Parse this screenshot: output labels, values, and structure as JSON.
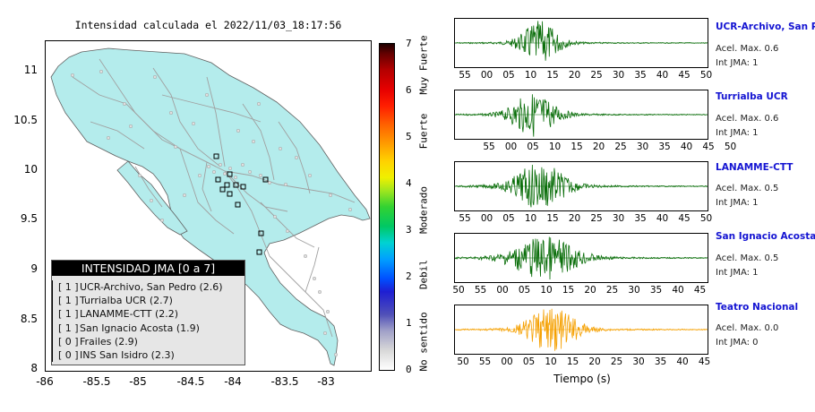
{
  "map": {
    "title": "Intensidad calculada el 2022/11/03_18:17:56",
    "lat_ticks": [
      "11",
      "10.5",
      "10",
      "9.5",
      "9",
      "8.5",
      "8"
    ],
    "lon_ticks": [
      "-86",
      "-85.5",
      "-85",
      "-84.5",
      "-84",
      "-83.5",
      "-83"
    ],
    "land_color": "#b4ecec",
    "road_color": "#a0a0a0"
  },
  "legend": {
    "title": "INTENSIDAD JMA [0 a 7]",
    "items": [
      {
        "level": "[ 1 ]",
        "text": "UCR-Archivo, San Pedro (2.6)"
      },
      {
        "level": "[ 1 ]",
        "text": "Turrialba UCR (2.7)"
      },
      {
        "level": "[ 1 ]",
        "text": "LANAMME-CTT (2.2)"
      },
      {
        "level": "[ 1 ]",
        "text": "San Ignacio Acosta (1.9)"
      },
      {
        "level": "[ 0 ]",
        "text": "Frailes (2.9)"
      },
      {
        "level": "[ 0 ]",
        "text": "INS San Isidro (2.3)"
      }
    ]
  },
  "colorbar": {
    "ticks": [
      "7",
      "6",
      "5",
      "4",
      "3",
      "2",
      "1",
      "0"
    ],
    "categories": [
      "Muy Fuerte",
      "Fuerte",
      "Moderado",
      "Debil",
      "No sentido"
    ]
  },
  "stations": [
    {
      "name": "UCR-Archivo, San Pedro",
      "accel": "Acel. Max. 0.6",
      "jma": "Int JMA: 1",
      "color": "#0a6e0a",
      "ticks": [
        "55",
        "00",
        "05",
        "10",
        "15",
        "20",
        "25",
        "30",
        "35",
        "40",
        "45",
        "50"
      ]
    },
    {
      "name": "Turrialba UCR",
      "accel": "Acel. Max. 0.6",
      "jma": "Int JMA: 1",
      "color": "#0a6e0a",
      "ticks": [
        "55",
        "00",
        "05",
        "10",
        "15",
        "20",
        "25",
        "30",
        "35",
        "40",
        "45",
        "50"
      ]
    },
    {
      "name": "LANAMME-CTT",
      "accel": "Acel. Max. 0.5",
      "jma": "Int JMA: 1",
      "color": "#0a6e0a",
      "ticks": [
        "55",
        "00",
        "05",
        "10",
        "15",
        "20",
        "25",
        "30",
        "35",
        "40",
        "45",
        "50"
      ]
    },
    {
      "name": "San Ignacio Acosta",
      "accel": "Acel. Max. 0.5",
      "jma": "Int JMA: 1",
      "color": "#0a6e0a",
      "ticks": [
        "50",
        "55",
        "00",
        "05",
        "10",
        "15",
        "20",
        "25",
        "30",
        "35",
        "40",
        "45"
      ]
    },
    {
      "name": "Teatro Nacional",
      "accel": "Acel. Max. 0.0",
      "jma": "Int JMA: 0",
      "color": "#f5a000",
      "ticks": [
        "50",
        "55",
        "00",
        "05",
        "10",
        "15",
        "20",
        "25",
        "30",
        "35",
        "40",
        "45"
      ]
    }
  ],
  "time_axis_label": "Tiempo (s)"
}
